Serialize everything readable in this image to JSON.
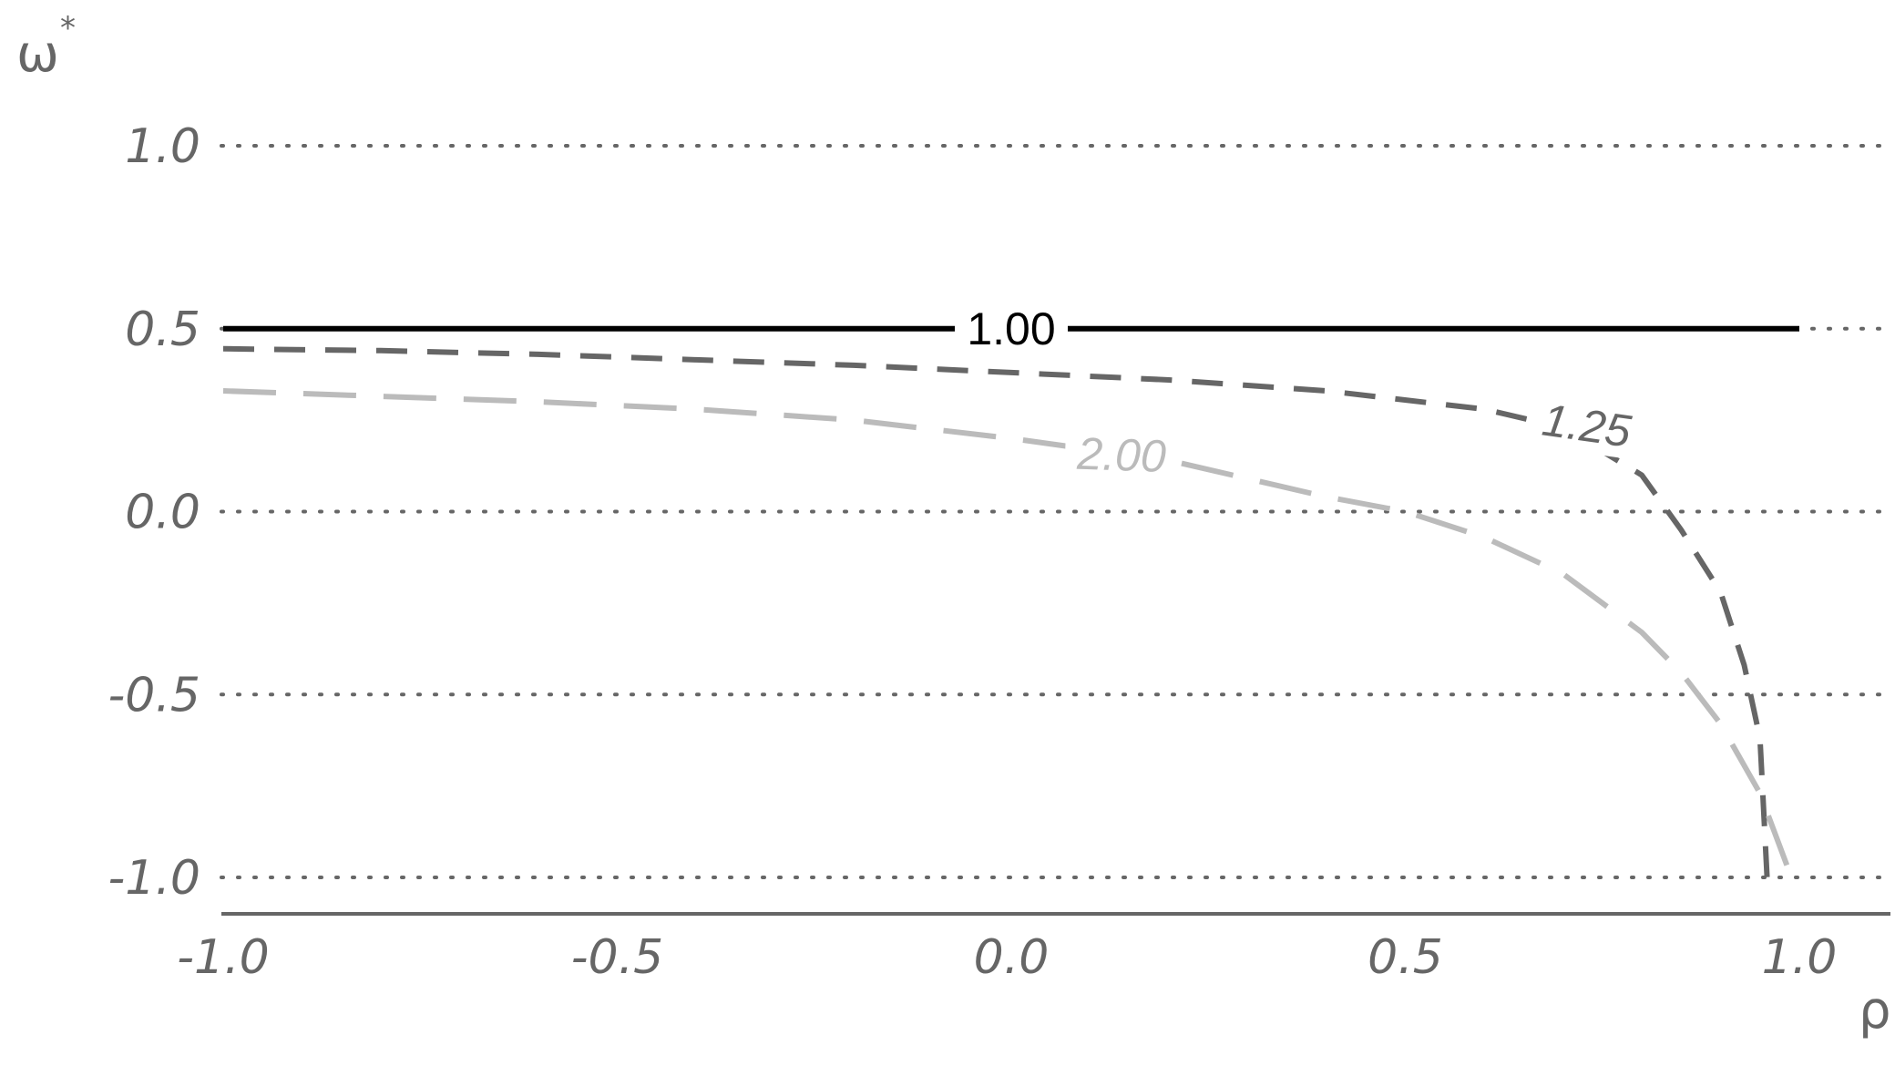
{
  "chart_data": {
    "type": "line",
    "xlabel": "ρ",
    "ylabel": "ω",
    "ylabel_superscript": "*",
    "xlim": [
      -1.0,
      1.0
    ],
    "ylim": [
      -1.0,
      1.0
    ],
    "x_ticks": [
      -1.0,
      -0.5,
      0.0,
      0.5,
      1.0
    ],
    "x_tick_labels": [
      "-1.0",
      "-0.5",
      "0.0",
      "0.5",
      "1.0"
    ],
    "y_ticks": [
      1.0,
      0.5,
      0.0,
      -0.5,
      -1.0
    ],
    "y_tick_labels": [
      "1.0",
      "0.5",
      "0.0",
      "-0.5",
      "-1.0"
    ],
    "grid": "horizontal dotted",
    "series": [
      {
        "name": "1.00",
        "color": "#000000",
        "style": "solid",
        "x": [
          -1.0,
          1.0
        ],
        "y": [
          0.5,
          0.5
        ]
      },
      {
        "name": "1.25",
        "color": "#666666",
        "style": "dashed",
        "x": [
          -1.0,
          -0.8,
          -0.6,
          -0.4,
          -0.2,
          0.0,
          0.2,
          0.4,
          0.6,
          0.7,
          0.8,
          0.85,
          0.9,
          0.93,
          0.95,
          0.96
        ],
        "y": [
          0.445,
          0.44,
          0.43,
          0.415,
          0.4,
          0.38,
          0.36,
          0.33,
          0.28,
          0.23,
          0.1,
          -0.05,
          -0.22,
          -0.42,
          -0.62,
          -1.04
        ]
      },
      {
        "name": "2.00",
        "color": "#bbbbbb",
        "style": "dashed",
        "x": [
          -1.0,
          -0.8,
          -0.6,
          -0.4,
          -0.2,
          0.0,
          0.2,
          0.4,
          0.5,
          0.6,
          0.7,
          0.8,
          0.85,
          0.9,
          0.95,
          0.99
        ],
        "y": [
          0.33,
          0.315,
          0.3,
          0.28,
          0.25,
          0.2,
          0.14,
          0.04,
          0.0,
          -0.07,
          -0.17,
          -0.33,
          -0.44,
          -0.58,
          -0.77,
          -1.0
        ]
      }
    ]
  }
}
